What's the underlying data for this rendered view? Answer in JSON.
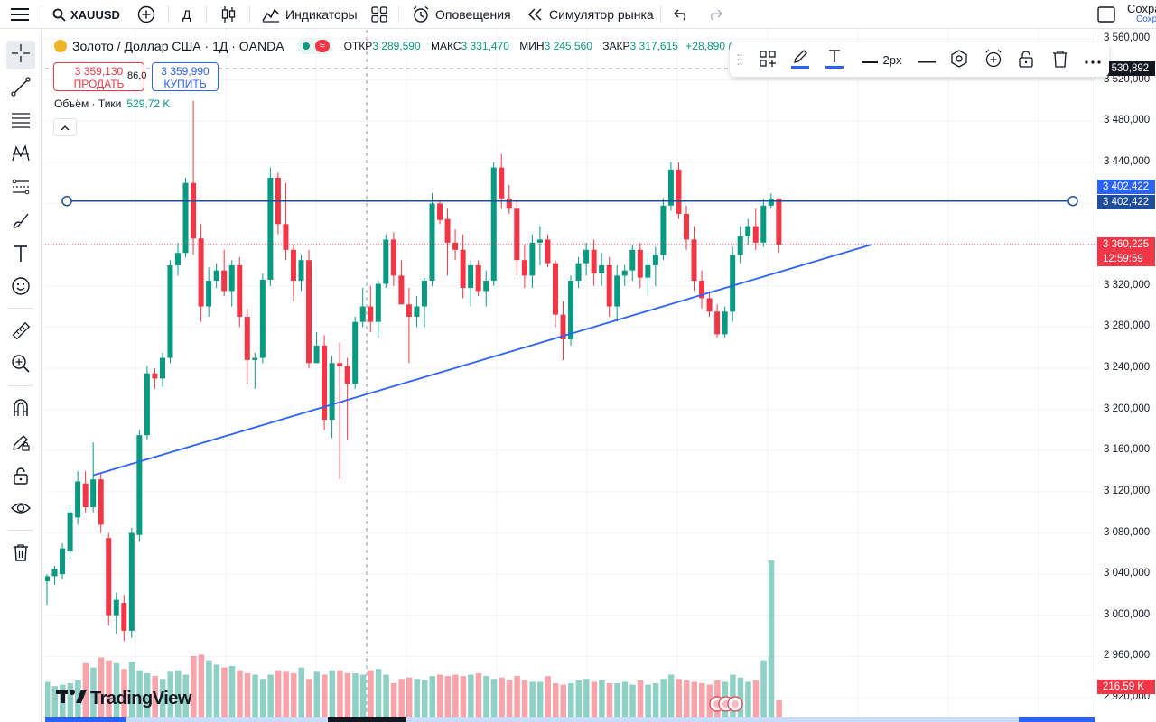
{
  "topbar": {
    "symbol": "XAUUSD",
    "interval": "Д",
    "indicators": "Индикаторы",
    "alerts": "Оповещения",
    "replay": "Симулятор рынка",
    "save_label": "Сохра",
    "save_sub": "Сохр"
  },
  "legend": {
    "title": "Золото / Доллар США · 1Д · OANDA",
    "open_k": "ОТКР",
    "open_v": "3 289,590",
    "high_k": "МАКС",
    "high_v": "3 331,470",
    "low_k": "МИН",
    "low_v": "3 245,560",
    "close_k": "ЗАКР",
    "close_v": "3 317,615",
    "change": "+28,890 (",
    "sell_price": "3 359,130",
    "sell_label": "ПРОДАТЬ",
    "spread": "86,0",
    "buy_price": "3 359,990",
    "buy_label": "КУПИТЬ",
    "volume_label": "Объём · Тики",
    "volume_value": "529,72 K"
  },
  "drawbar": {
    "width_label": "2px"
  },
  "price_axis": {
    "ticks": [
      "3 560,000",
      "3 520,000",
      "3 480,000",
      "3 440,000",
      "3 400,000",
      "3 360,000",
      "3 320,000",
      "3 280,000",
      "3 240,000",
      "3 200,000",
      "3 160,000",
      "3 120,000",
      "3 080,000",
      "3 040,000",
      "3 000,000",
      "2 960,000",
      "2 920,000"
    ],
    "crosshair_label": "3 530,892",
    "hline_label_1": "3 402,422",
    "hline_label_2": "3 402,422",
    "last_price": "3 360,225",
    "countdown": "12:59:59",
    "volume_label": "216,59 K"
  },
  "branding": {
    "logo": "TradingView"
  },
  "colors": {
    "up": "#089981",
    "down": "#f23645",
    "line": "#2962ff",
    "hline": "#1e4d9b"
  },
  "chart_data": {
    "type": "candlestick",
    "candles": [
      [
        3033,
        3040,
        3010,
        3038
      ],
      [
        3038,
        3048,
        3030,
        3045
      ],
      [
        3040,
        3070,
        3035,
        3065
      ],
      [
        3062,
        3105,
        3055,
        3100
      ],
      [
        3095,
        3140,
        3088,
        3130
      ],
      [
        3128,
        3140,
        3100,
        3105
      ],
      [
        3105,
        3168,
        3100,
        3132
      ],
      [
        3132,
        3138,
        3080,
        3088
      ],
      [
        3075,
        3080,
        2990,
        3000
      ],
      [
        3000,
        3022,
        2982,
        3015
      ],
      [
        3012,
        3020,
        2975,
        2985
      ],
      [
        2985,
        3085,
        2978,
        3080
      ],
      [
        3078,
        3180,
        3072,
        3175
      ],
      [
        3175,
        3242,
        3170,
        3235
      ],
      [
        3235,
        3240,
        3220,
        3230
      ],
      [
        3230,
        3255,
        3222,
        3250
      ],
      [
        3250,
        3345,
        3245,
        3340
      ],
      [
        3340,
        3362,
        3330,
        3352
      ],
      [
        3352,
        3425,
        3348,
        3420
      ],
      [
        3420,
        3500,
        3350,
        3366
      ],
      [
        3366,
        3380,
        3285,
        3300
      ],
      [
        3300,
        3338,
        3290,
        3325
      ],
      [
        3325,
        3342,
        3318,
        3335
      ],
      [
        3335,
        3355,
        3310,
        3315
      ],
      [
        3315,
        3345,
        3300,
        3340
      ],
      [
        3340,
        3348,
        3280,
        3290
      ],
      [
        3290,
        3298,
        3225,
        3248
      ],
      [
        3248,
        3255,
        3220,
        3250
      ],
      [
        3250,
        3332,
        3245,
        3326
      ],
      [
        3326,
        3435,
        3320,
        3425
      ],
      [
        3425,
        3430,
        3370,
        3380
      ],
      [
        3380,
        3420,
        3345,
        3355
      ],
      [
        3355,
        3360,
        3305,
        3325
      ],
      [
        3325,
        3350,
        3315,
        3345
      ],
      [
        3345,
        3355,
        3240,
        3245
      ],
      [
        3245,
        3275,
        3245,
        3262
      ],
      [
        3262,
        3272,
        3180,
        3190
      ],
      [
        3190,
        3252,
        3172,
        3245
      ],
      [
        3245,
        3265,
        3132,
        3242
      ],
      [
        3242,
        3250,
        3170,
        3225
      ],
      [
        3225,
        3290,
        3220,
        3285
      ],
      [
        3285,
        3318,
        3280,
        3300
      ],
      [
        3300,
        3320,
        3275,
        3285
      ],
      [
        3285,
        3325,
        3270,
        3322
      ],
      [
        3322,
        3370,
        3318,
        3365
      ],
      [
        3365,
        3372,
        3320,
        3330
      ],
      [
        3330,
        3345,
        3302,
        3302
      ],
      [
        3302,
        3318,
        3245,
        3290
      ],
      [
        3290,
        3310,
        3280,
        3300
      ],
      [
        3300,
        3328,
        3280,
        3325
      ],
      [
        3325,
        3410,
        3320,
        3400
      ],
      [
        3400,
        3402,
        3380,
        3384
      ],
      [
        3385,
        3395,
        3330,
        3362
      ],
      [
        3362,
        3375,
        3345,
        3355
      ],
      [
        3355,
        3370,
        3308,
        3318
      ],
      [
        3318,
        3345,
        3300,
        3340
      ],
      [
        3340,
        3345,
        3310,
        3315
      ],
      [
        3315,
        3335,
        3300,
        3325
      ],
      [
        3325,
        3440,
        3320,
        3435
      ],
      [
        3435,
        3448,
        3395,
        3405
      ],
      [
        3405,
        3418,
        3390,
        3395
      ],
      [
        3395,
        3402,
        3330,
        3345
      ],
      [
        3345,
        3360,
        3318,
        3330
      ],
      [
        3330,
        3370,
        3318,
        3362
      ],
      [
        3362,
        3378,
        3340,
        3365
      ],
      [
        3365,
        3370,
        3338,
        3342
      ],
      [
        3342,
        3345,
        3280,
        3292
      ],
      [
        3292,
        3305,
        3248,
        3268
      ],
      [
        3268,
        3330,
        3262,
        3325
      ],
      [
        3325,
        3348,
        3318,
        3342
      ],
      [
        3342,
        3362,
        3330,
        3355
      ],
      [
        3355,
        3365,
        3320,
        3332
      ],
      [
        3332,
        3352,
        3320,
        3340
      ],
      [
        3340,
        3348,
        3290,
        3300
      ],
      [
        3300,
        3340,
        3285,
        3330
      ],
      [
        3330,
        3340,
        3320,
        3335
      ],
      [
        3335,
        3360,
        3325,
        3355
      ],
      [
        3355,
        3362,
        3318,
        3328
      ],
      [
        3328,
        3350,
        3310,
        3340
      ],
      [
        3340,
        3358,
        3320,
        3350
      ],
      [
        3350,
        3405,
        3345,
        3398
      ],
      [
        3398,
        3440,
        3393,
        3433
      ],
      [
        3433,
        3440,
        3385,
        3390
      ],
      [
        3390,
        3398,
        3355,
        3365
      ],
      [
        3365,
        3378,
        3315,
        3325
      ],
      [
        3325,
        3335,
        3298,
        3308
      ],
      [
        3308,
        3315,
        3290,
        3295
      ],
      [
        3295,
        3302,
        3270,
        3273
      ],
      [
        3273,
        3300,
        3270,
        3295
      ],
      [
        3295,
        3358,
        3285,
        3350
      ],
      [
        3350,
        3378,
        3342,
        3368
      ],
      [
        3368,
        3385,
        3360,
        3378
      ],
      [
        3378,
        3395,
        3355,
        3362
      ],
      [
        3362,
        3405,
        3358,
        3398
      ],
      [
        3398,
        3410,
        3395,
        3405
      ],
      [
        3405,
        3405,
        3352,
        3360
      ]
    ],
    "volumes": [
      25,
      22,
      23,
      24,
      26,
      38,
      35,
      42,
      40,
      38,
      34,
      39,
      33,
      31,
      29,
      27,
      32,
      33,
      30,
      43,
      44,
      40,
      37,
      35,
      36,
      33,
      31,
      30,
      27,
      30,
      33,
      32,
      31,
      35,
      27,
      32,
      30,
      33,
      33,
      31,
      31,
      30,
      33,
      34,
      30,
      24,
      27,
      28,
      27,
      26,
      29,
      30,
      29,
      30,
      29,
      30,
      31,
      29,
      27,
      28,
      26,
      29,
      26,
      25,
      25,
      29,
      24,
      23,
      24,
      26,
      27,
      25,
      26,
      24,
      24,
      25,
      23,
      26,
      23,
      24,
      27,
      30,
      27,
      26,
      25,
      24,
      23,
      26,
      25,
      30,
      28,
      25,
      26,
      40,
      110,
      12
    ],
    "hline": 3402.422,
    "trendline": {
      "p1": [
        3136,
        6
      ],
      "p2": [
        3360,
        107
      ]
    },
    "ylim": [
      2905,
      3575
    ]
  }
}
